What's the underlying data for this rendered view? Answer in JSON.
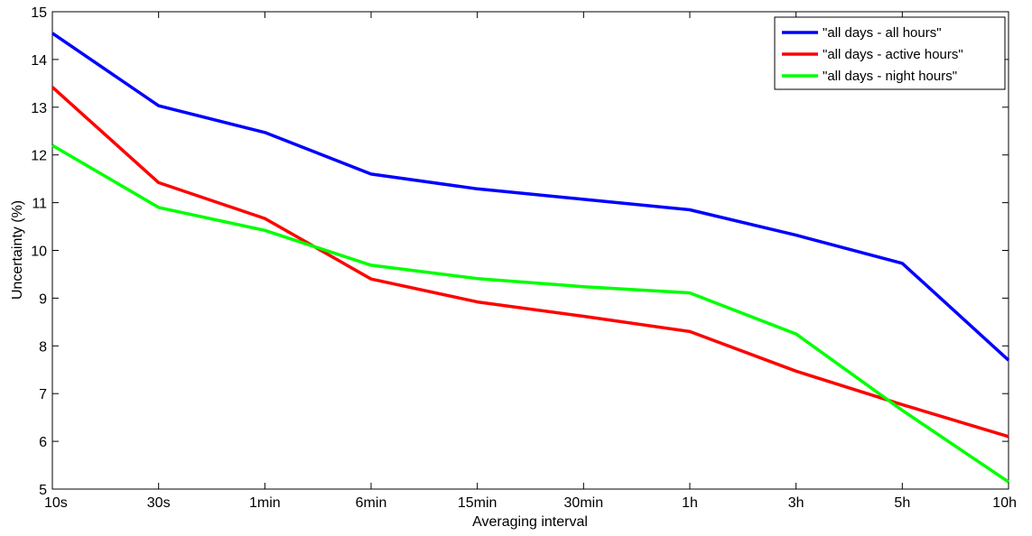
{
  "chart_data": {
    "type": "line",
    "title": "",
    "xlabel": "Averaging interval",
    "ylabel": "Uncertainty (%)",
    "categories": [
      "10s",
      "30s",
      "1min",
      "6min",
      "15min",
      "30min",
      "1h",
      "3h",
      "5h",
      "10h"
    ],
    "ylim": [
      5,
      15
    ],
    "yticks": [
      5,
      6,
      7,
      8,
      9,
      10,
      11,
      12,
      13,
      14,
      15
    ],
    "grid": false,
    "legend_position": "top-right",
    "series": [
      {
        "name": "\"all days - all hours\"",
        "color": "#0000ff",
        "values": [
          14.55,
          13.03,
          12.47,
          11.6,
          11.29,
          11.07,
          10.85,
          10.32,
          9.73,
          7.7
        ]
      },
      {
        "name": "\"all days - active hours\"",
        "color": "#ff0000",
        "values": [
          13.42,
          11.42,
          10.67,
          9.4,
          8.92,
          8.62,
          8.3,
          7.47,
          6.77,
          6.1
        ]
      },
      {
        "name": "\"all days - night hours\"",
        "color": "#00ff00",
        "values": [
          12.2,
          10.9,
          10.42,
          9.69,
          9.41,
          9.24,
          9.11,
          8.25,
          6.65,
          5.15
        ]
      }
    ]
  }
}
